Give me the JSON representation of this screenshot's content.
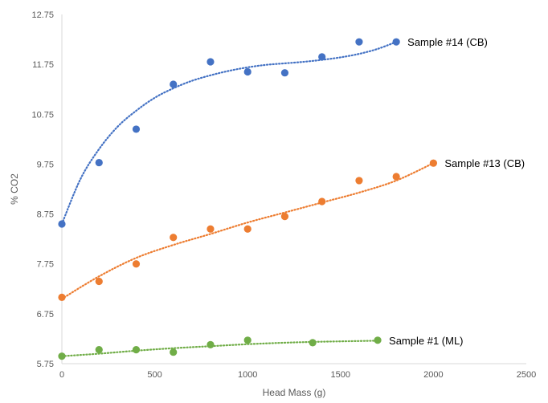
{
  "chart_data": {
    "type": "scatter",
    "title": "",
    "xlabel": "Head Mass (g)",
    "ylabel": "% CO2",
    "xlim": [
      0,
      2500
    ],
    "ylim": [
      5.75,
      12.75
    ],
    "x_ticks": [
      "0",
      "500",
      "1000",
      "1500",
      "2000",
      "2500"
    ],
    "y_ticks": [
      "5.75",
      "6.75",
      "7.75",
      "8.75",
      "9.75",
      "10.75",
      "11.75",
      "12.75"
    ],
    "grid": false,
    "legend": "inline labels at right end of each series",
    "series": [
      {
        "name": "Sample #14 (CB)",
        "color": "#4472C4",
        "trendline": "dotted",
        "x": [
          0,
          200,
          400,
          600,
          800,
          1000,
          1200,
          1400,
          1600,
          1800
        ],
        "y": [
          8.55,
          9.78,
          10.45,
          11.35,
          11.8,
          11.6,
          11.58,
          11.9,
          12.2,
          12.2
        ],
        "trend": [
          [
            0,
            8.55
          ],
          [
            100,
            9.45
          ],
          [
            200,
            10.05
          ],
          [
            300,
            10.5
          ],
          [
            400,
            10.82
          ],
          [
            500,
            11.08
          ],
          [
            600,
            11.27
          ],
          [
            700,
            11.42
          ],
          [
            800,
            11.53
          ],
          [
            900,
            11.62
          ],
          [
            1000,
            11.69
          ],
          [
            1100,
            11.74
          ],
          [
            1200,
            11.77
          ],
          [
            1300,
            11.8
          ],
          [
            1400,
            11.84
          ],
          [
            1500,
            11.89
          ],
          [
            1600,
            11.96
          ],
          [
            1700,
            12.06
          ],
          [
            1800,
            12.2
          ]
        ]
      },
      {
        "name": "Sample #13 (CB)",
        "color": "#ED7D31",
        "trendline": "dotted",
        "x": [
          0,
          200,
          400,
          600,
          800,
          1000,
          1200,
          1400,
          1600,
          1800,
          2000
        ],
        "y": [
          7.08,
          7.4,
          7.75,
          8.28,
          8.45,
          8.45,
          8.7,
          9.0,
          9.42,
          9.5,
          9.77
        ],
        "trend": [
          [
            0,
            7.05
          ],
          [
            200,
            7.5
          ],
          [
            400,
            7.87
          ],
          [
            600,
            8.13
          ],
          [
            800,
            8.35
          ],
          [
            1000,
            8.58
          ],
          [
            1200,
            8.78
          ],
          [
            1400,
            8.98
          ],
          [
            1600,
            9.18
          ],
          [
            1800,
            9.42
          ],
          [
            2000,
            9.77
          ]
        ]
      },
      {
        "name": "Sample #1 (ML)",
        "color": "#70AD47",
        "trendline": "dotted",
        "x": [
          0,
          200,
          400,
          600,
          800,
          1000,
          1350,
          1700
        ],
        "y": [
          5.9,
          6.03,
          6.03,
          5.98,
          6.13,
          6.22,
          6.17,
          6.22
        ],
        "trend": [
          [
            0,
            5.9
          ],
          [
            200,
            5.95
          ],
          [
            400,
            6.01
          ],
          [
            600,
            6.06
          ],
          [
            800,
            6.1
          ],
          [
            1000,
            6.14
          ],
          [
            1200,
            6.17
          ],
          [
            1400,
            6.19
          ],
          [
            1700,
            6.21
          ]
        ]
      }
    ]
  }
}
